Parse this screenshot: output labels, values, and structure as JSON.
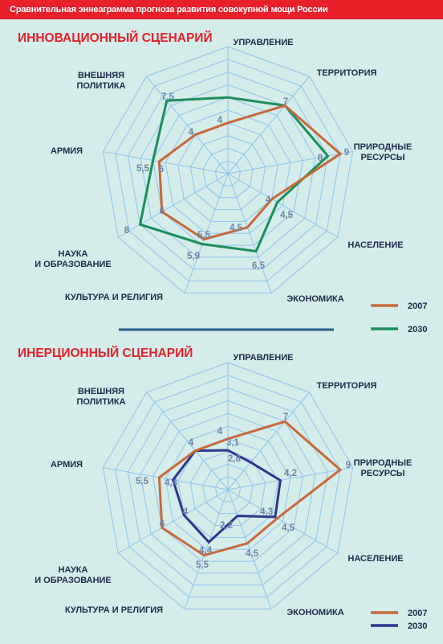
{
  "header": {
    "title": "Сравнительная эннеаграмма прогноза развития совокупной мощи России"
  },
  "colors": {
    "series_2007": "#c8683a",
    "innov_2030": "#1a8f5c",
    "inert_2030": "#2e3590",
    "grid": "#8fc4ee",
    "divider": "#1f5c8a",
    "title_bar": "#e8202a"
  },
  "chart_data": [
    {
      "type": "radar",
      "title": "ИННОВАЦИОННЫЙ СЦЕНАРИЙ",
      "axes": [
        "УПРАВЛЕНИЕ",
        "ТЕРРИТОРИЯ",
        "ПРИРОДНЫЕ РЕСУРСЫ",
        "НАСЕЛЕНИЕ",
        "ЭКОНОМИКА",
        "КУЛЬТУРА И РЕЛИГИЯ",
        "НАУКА И ОБРАЗОВАНИЕ",
        "АРМИЯ",
        "ВНЕШНЯЯ ПОЛИТИКА"
      ],
      "rmax": 10,
      "series": [
        {
          "name": "2007",
          "values": [
            4,
            7,
            9,
            4,
            4.5,
            5.5,
            6,
            5.5,
            4
          ],
          "labels": [
            "4",
            "7",
            "9",
            "4",
            "4,5",
            "5,5",
            "6",
            "5,5",
            "4"
          ]
        },
        {
          "name": "2030",
          "values": [
            6,
            7,
            8,
            4.5,
            6.5,
            5.9,
            8,
            6,
            7.5
          ],
          "labels": [
            "",
            "",
            "8",
            "4,5",
            "6,5",
            "5,9",
            "8",
            "6",
            "7,5"
          ]
        }
      ],
      "legend": [
        "2007",
        "2030"
      ]
    },
    {
      "type": "radar",
      "title": "ИНЕРЦИОННЫЙ СЦЕНАРИЙ",
      "axes": [
        "УПРАВЛЕНИЕ",
        "ТЕРРИТОРИЯ",
        "ПРИРОДНЫЕ РЕСУРСЫ",
        "НАСЕЛЕНИЕ",
        "ЭКОНОМИКА",
        "КУЛЬТУРА И РЕЛИГИЯ",
        "НАУКА И ОБРАЗОВАНИЕ",
        "АРМИЯ",
        "ВНЕШНЯЯ ПОЛИТИКА"
      ],
      "rmax": 10,
      "series": [
        {
          "name": "2007",
          "values": [
            4,
            7,
            9,
            4.5,
            4.5,
            5.5,
            6,
            5.5,
            4
          ],
          "labels": [
            "4",
            "7",
            "9",
            "4,5",
            "4,5",
            "5,5",
            "6",
            "5,5",
            "4"
          ]
        },
        {
          "name": "2030",
          "values": [
            3.1,
            2.8,
            4.2,
            4.3,
            2.2,
            4.4,
            4,
            4.4,
            4
          ],
          "labels": [
            "3,1",
            "2,8",
            "4,2",
            "4,3",
            "2,2",
            "4,4",
            "4",
            "4,4",
            ""
          ]
        }
      ],
      "legend": [
        "2007",
        "2030"
      ]
    }
  ]
}
